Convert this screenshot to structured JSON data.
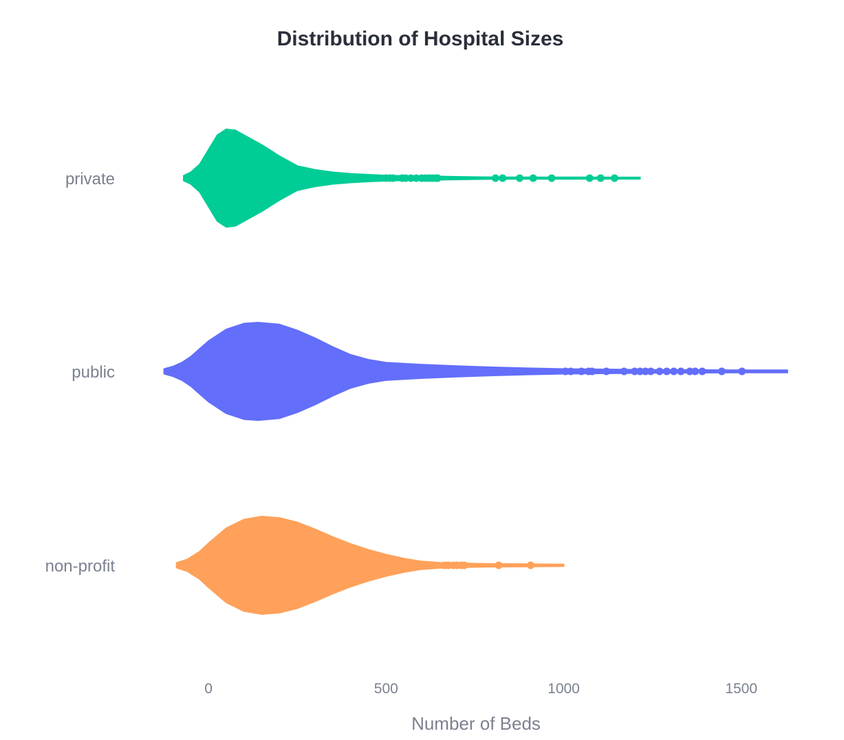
{
  "chart_data": {
    "type": "violin",
    "title": "Distribution of Hospital Sizes",
    "xlabel": "Number of Beds",
    "ylabel": "",
    "xlim": [
      -130,
      1640
    ],
    "xticks": [
      0,
      500,
      1000,
      1500
    ],
    "grid": false,
    "legend": "none",
    "orientation": "horizontal",
    "categories": [
      "private",
      "public",
      "non-profit"
    ],
    "series": [
      {
        "name": "private",
        "color": "#00cc96",
        "range": [
          -70,
          1215
        ],
        "density": [
          [
            -70,
            0.05
          ],
          [
            -50,
            0.12
          ],
          [
            -25,
            0.28
          ],
          [
            0,
            0.58
          ],
          [
            25,
            0.88
          ],
          [
            50,
            1.0
          ],
          [
            75,
            0.98
          ],
          [
            100,
            0.88
          ],
          [
            150,
            0.68
          ],
          [
            200,
            0.45
          ],
          [
            250,
            0.25
          ],
          [
            300,
            0.17
          ],
          [
            350,
            0.12
          ],
          [
            400,
            0.09
          ],
          [
            450,
            0.07
          ],
          [
            500,
            0.055
          ],
          [
            550,
            0.045
          ],
          [
            600,
            0.04
          ],
          [
            650,
            0.035
          ],
          [
            700,
            0.028
          ],
          [
            750,
            0.022
          ],
          [
            800,
            0.02
          ],
          [
            900,
            0.018
          ],
          [
            1000,
            0.017
          ],
          [
            1100,
            0.017
          ],
          [
            1215,
            0.015
          ]
        ],
        "outliers": [
          480,
          500,
          510,
          520,
          545,
          555,
          570,
          585,
          600,
          610,
          620,
          630,
          640,
          645,
          808,
          828,
          876,
          914,
          966,
          1073,
          1104,
          1143
        ]
      },
      {
        "name": "public",
        "color": "#636efa",
        "range": [
          -125,
          1630
        ],
        "density": [
          [
            -125,
            0.05
          ],
          [
            -100,
            0.1
          ],
          [
            -75,
            0.18
          ],
          [
            -50,
            0.3
          ],
          [
            -25,
            0.46
          ],
          [
            0,
            0.62
          ],
          [
            50,
            0.86
          ],
          [
            100,
            0.98
          ],
          [
            140,
            1.0
          ],
          [
            200,
            0.96
          ],
          [
            250,
            0.84
          ],
          [
            300,
            0.68
          ],
          [
            350,
            0.5
          ],
          [
            400,
            0.34
          ],
          [
            450,
            0.24
          ],
          [
            500,
            0.18
          ],
          [
            600,
            0.14
          ],
          [
            700,
            0.11
          ],
          [
            800,
            0.085
          ],
          [
            900,
            0.065
          ],
          [
            1000,
            0.05
          ],
          [
            1100,
            0.042
          ],
          [
            1200,
            0.035
          ],
          [
            1300,
            0.03
          ],
          [
            1400,
            0.028
          ],
          [
            1500,
            0.026
          ],
          [
            1630,
            0.025
          ]
        ],
        "outliers": [
          1005,
          1020,
          1050,
          1070,
          1080,
          1120,
          1170,
          1200,
          1215,
          1230,
          1245,
          1270,
          1290,
          1310,
          1330,
          1355,
          1370,
          1390,
          1445,
          1502
        ]
      },
      {
        "name": "non-profit",
        "color": "#ffa15a",
        "range": [
          -90,
          1000
        ],
        "density": [
          [
            -90,
            0.05
          ],
          [
            -60,
            0.12
          ],
          [
            -25,
            0.28
          ],
          [
            0,
            0.45
          ],
          [
            50,
            0.76
          ],
          [
            100,
            0.94
          ],
          [
            150,
            1.0
          ],
          [
            200,
            0.97
          ],
          [
            250,
            0.88
          ],
          [
            300,
            0.74
          ],
          [
            350,
            0.58
          ],
          [
            400,
            0.44
          ],
          [
            450,
            0.32
          ],
          [
            500,
            0.22
          ],
          [
            550,
            0.14
          ],
          [
            600,
            0.08
          ],
          [
            650,
            0.055
          ],
          [
            700,
            0.045
          ],
          [
            750,
            0.035
          ],
          [
            800,
            0.03
          ],
          [
            900,
            0.025
          ],
          [
            1000,
            0.02
          ]
        ],
        "outliers": [
          665,
          675,
          690,
          700,
          712,
          720,
          817,
          907
        ]
      }
    ]
  }
}
